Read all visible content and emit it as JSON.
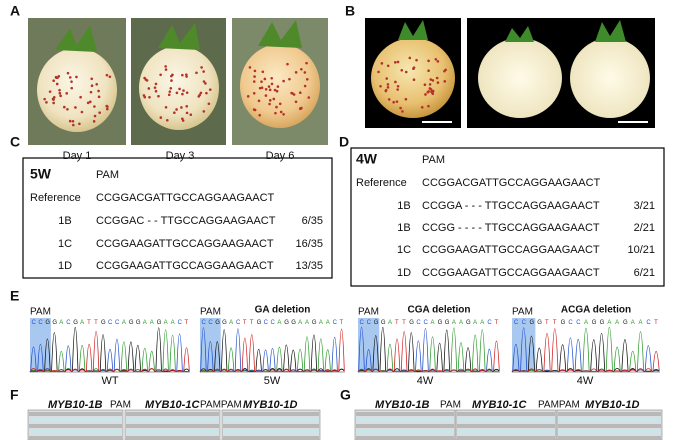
{
  "panel_a": {
    "label": "A",
    "captions": [
      "Day 1",
      "Day 3",
      "Day 6"
    ]
  },
  "panel_b": {
    "label": "B"
  },
  "panel_c": {
    "label": "C",
    "group": "5W",
    "pam": "PAM",
    "rows": [
      {
        "name": "Reference",
        "seq": "CCGGACGATTGCCAGGAAGAACT",
        "ratio": null
      },
      {
        "name": "1B",
        "seq": "CCGGAC - - TTGCCAGGAAGAACT",
        "ratio": "6/35"
      },
      {
        "name": "1C",
        "seq": "CCGGAAGATTGCCAGGAAGAACT",
        "ratio": "16/35"
      },
      {
        "name": "1D",
        "seq": "CCGGAAGATTGCCAGGAAGAACT",
        "ratio": "13/35"
      }
    ]
  },
  "panel_d": {
    "label": "D",
    "group": "4W",
    "pam": "PAM",
    "rows": [
      {
        "name": "Reference",
        "seq": "CCGGACGATTGCCAGGAAGAACT",
        "ratio": null
      },
      {
        "name": "1B",
        "seq": "CCGGA - - - TTGCCAGGAAGAACT",
        "ratio": "3/21"
      },
      {
        "name": "1B",
        "seq": "CCGG - - - - TTGCCAGGAAGAACT",
        "ratio": "2/21"
      },
      {
        "name": "1C",
        "seq": "CCGGAAGATTGCCAGGAAGAACT",
        "ratio": "10/21"
      },
      {
        "name": "1D",
        "seq": "CCGGAAGATTGCCAGGAAGAACT",
        "ratio": "6/21"
      }
    ]
  },
  "panel_e": {
    "label": "E",
    "traces": [
      {
        "pam": "PAM",
        "title": null,
        "seq": "CCGGACGATTGCCAGGAAGAACT",
        "caption": "WT"
      },
      {
        "pam": "PAM",
        "title": "GA deletion",
        "seq": "CCGGACTTGCCAGGAAGAACT",
        "caption": "5W"
      },
      {
        "pam": "PAM",
        "title": "CGA deletion",
        "seq": "CCGGATTGCCAGGAAGAACT",
        "caption": "4W"
      },
      {
        "pam": "PAM",
        "title": "ACGA deletion",
        "seq": "CCGGTTGCCAGGAAGAACT",
        "caption": "4W"
      }
    ]
  },
  "panel_f": {
    "label": "F",
    "headers": [
      "MYB10-1B",
      "PAM",
      "MYB10-1C",
      "PAMPAM",
      "MYB10-1D"
    ]
  },
  "panel_g": {
    "label": "G",
    "headers": [
      "MYB10-1B",
      "PAM",
      "MYB10-1C",
      "PAMPAM",
      "MYB10-1D"
    ]
  }
}
